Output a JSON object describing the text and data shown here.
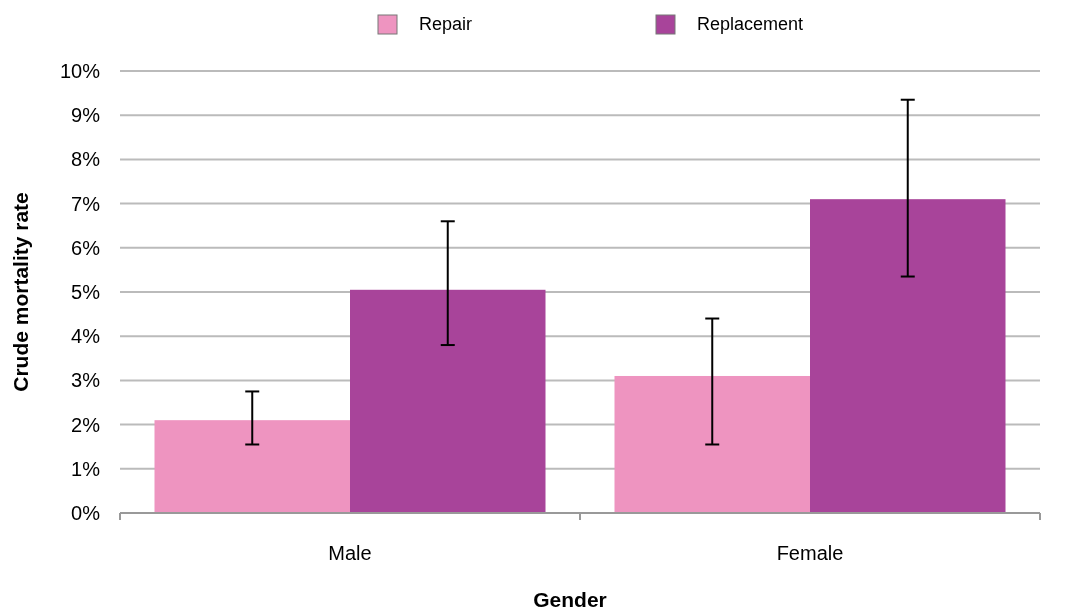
{
  "chart_data": {
    "type": "bar",
    "xlabel": "Gender",
    "ylabel": "Crude mortality rate",
    "categories": [
      "Male",
      "Female"
    ],
    "series": [
      {
        "name": "Repair",
        "color": "#ee94c0",
        "values": [
          2.1,
          3.1
        ],
        "errors": [
          [
            1.55,
            2.75
          ],
          [
            1.55,
            4.4
          ]
        ]
      },
      {
        "name": "Replacement",
        "color": "#a8449a",
        "values": [
          5.05,
          7.1
        ],
        "errors": [
          [
            3.8,
            6.6
          ],
          [
            5.35,
            9.35
          ]
        ]
      }
    ],
    "ylim": [
      0,
      10
    ],
    "yticks": [
      {
        "value": 0,
        "label": "0%"
      },
      {
        "value": 1,
        "label": "1%"
      },
      {
        "value": 2,
        "label": "2%"
      },
      {
        "value": 3,
        "label": "3%"
      },
      {
        "value": 4,
        "label": "4%"
      },
      {
        "value": 5,
        "label": "5%"
      },
      {
        "value": 6,
        "label": "6%"
      },
      {
        "value": 7,
        "label": "7%"
      },
      {
        "value": 8,
        "label": "8%"
      },
      {
        "value": 9,
        "label": "9%"
      },
      {
        "value": 10,
        "label": "10%"
      }
    ],
    "grid": "y",
    "legend": "top"
  }
}
